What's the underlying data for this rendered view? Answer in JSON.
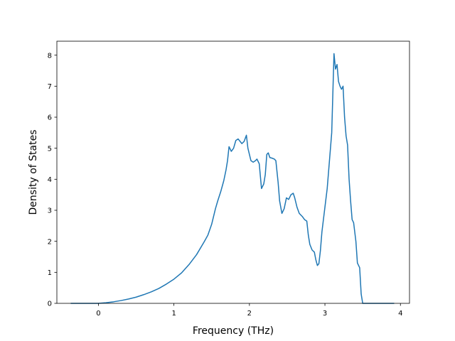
{
  "chart_data": {
    "type": "line",
    "title": "",
    "xlabel": "Frequency (THz)",
    "ylabel": "Density of States",
    "xlim": [
      -0.55,
      4.12
    ],
    "ylim": [
      0,
      8.45
    ],
    "xticks": [
      0,
      1,
      2,
      3,
      4
    ],
    "yticks": [
      0,
      1,
      2,
      3,
      4,
      5,
      6,
      7,
      8
    ],
    "grid": false,
    "legend": "none",
    "colors": {
      "line": "#1f77b4",
      "axes": "#000000",
      "background": "#ffffff"
    },
    "series": [
      {
        "x": [
          -0.36,
          -0.2,
          0.0,
          0.1,
          0.2,
          0.3,
          0.4,
          0.5,
          0.6,
          0.7,
          0.8,
          0.9,
          1.0,
          1.1,
          1.2,
          1.3,
          1.4,
          1.45,
          1.5,
          1.55,
          1.58,
          1.62,
          1.66,
          1.69,
          1.71,
          1.73,
          1.76,
          1.79,
          1.82,
          1.85,
          1.9,
          1.93,
          1.96,
          1.98,
          2.02,
          2.05,
          2.08,
          2.1,
          2.13,
          2.16,
          2.19,
          2.21,
          2.23,
          2.25,
          2.27,
          2.3,
          2.33,
          2.35,
          2.38,
          2.4,
          2.43,
          2.46,
          2.49,
          2.52,
          2.55,
          2.58,
          2.6,
          2.63,
          2.66,
          2.7,
          2.73,
          2.76,
          2.78,
          2.8,
          2.83,
          2.86,
          2.88,
          2.9,
          2.92,
          2.94,
          2.96,
          2.98,
          3.0,
          3.03,
          3.06,
          3.09,
          3.12,
          3.14,
          3.16,
          3.18,
          3.2,
          3.22,
          3.24,
          3.26,
          3.28,
          3.3,
          3.32,
          3.34,
          3.36,
          3.38,
          3.41,
          3.43,
          3.46,
          3.48,
          3.5,
          3.52,
          3.54,
          3.56,
          3.6,
          3.7,
          3.8,
          3.91
        ],
        "y": [
          0.0,
          0.0,
          0.0,
          0.02,
          0.05,
          0.09,
          0.14,
          0.2,
          0.28,
          0.37,
          0.48,
          0.62,
          0.78,
          0.98,
          1.25,
          1.57,
          1.98,
          2.2,
          2.55,
          3.05,
          3.3,
          3.6,
          3.95,
          4.3,
          4.6,
          5.05,
          4.9,
          5.0,
          5.25,
          5.3,
          5.15,
          5.22,
          5.42,
          5.0,
          4.6,
          4.55,
          4.6,
          4.65,
          4.5,
          3.7,
          3.85,
          4.15,
          4.8,
          4.85,
          4.7,
          4.68,
          4.65,
          4.6,
          3.9,
          3.3,
          2.9,
          3.05,
          3.4,
          3.35,
          3.5,
          3.55,
          3.4,
          3.1,
          2.9,
          2.8,
          2.7,
          2.65,
          2.2,
          1.9,
          1.72,
          1.65,
          1.4,
          1.22,
          1.28,
          1.7,
          2.3,
          2.7,
          3.1,
          3.7,
          4.6,
          5.5,
          8.05,
          7.55,
          7.7,
          7.15,
          7.0,
          6.9,
          7.0,
          6.0,
          5.4,
          5.1,
          4.0,
          3.3,
          2.7,
          2.6,
          2.0,
          1.3,
          1.15,
          0.3,
          0.0,
          0.0,
          0.0,
          0.0,
          0.0,
          0.0,
          0.0,
          0.0
        ]
      }
    ]
  }
}
